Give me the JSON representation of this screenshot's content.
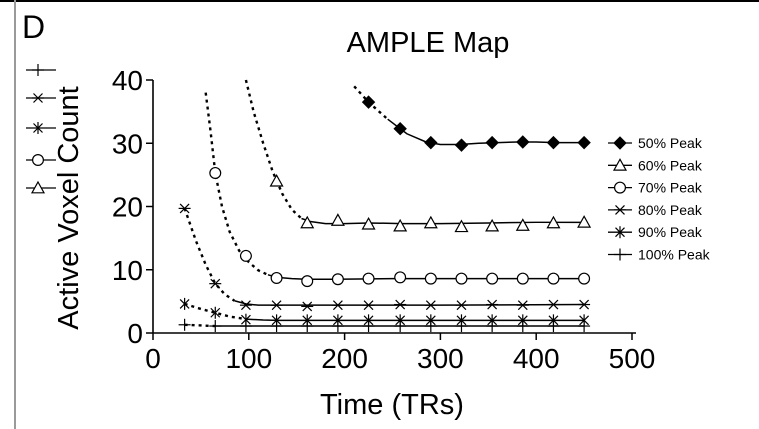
{
  "panel_letter": "D",
  "chart_data": {
    "type": "line",
    "title": "AMPLE Map",
    "xlabel": "Time (TRs)",
    "ylabel": "Active Voxel Count",
    "xlim": [
      0,
      500
    ],
    "ylim": [
      0,
      40
    ],
    "x_ticks": [
      "0",
      "100",
      "200",
      "300",
      "400",
      "500"
    ],
    "y_ticks": [
      "0",
      "10",
      "20",
      "30",
      "40"
    ],
    "legend_position": "right",
    "series": [
      {
        "name": "50% Peak",
        "marker": "diamond-filled",
        "x": [
          225,
          258,
          290,
          322,
          354,
          386,
          418,
          450
        ],
        "y": [
          36.5,
          32.3,
          30.1,
          29.7,
          30.1,
          30.2,
          30.1,
          30.1
        ],
        "fit_x": [
          210,
          225,
          245,
          265,
          285,
          300,
          320,
          340,
          360,
          380,
          400,
          420,
          450
        ],
        "fit_y": [
          39,
          36.5,
          33.8,
          31.5,
          30.2,
          29.8,
          29.8,
          30.0,
          30.1,
          30.2,
          30.2,
          30.1,
          30.1
        ],
        "dashed_until": 245
      },
      {
        "name": "60% Peak",
        "marker": "triangle-open",
        "x": [
          129,
          161,
          193,
          225,
          258,
          290,
          322,
          354,
          386,
          418,
          450
        ],
        "y": [
          24,
          17.4,
          17.8,
          17.2,
          16.9,
          17.4,
          16.8,
          16.9,
          17.0,
          17.4,
          17.5
        ],
        "fit_x": [
          97,
          105,
          115,
          125,
          135,
          145,
          155,
          165,
          180,
          200,
          225,
          260,
          300,
          350,
          400,
          450
        ],
        "fit_y": [
          40,
          35,
          30,
          25.5,
          22,
          19.5,
          18.1,
          17.6,
          17.3,
          17.3,
          17.4,
          17.3,
          17.3,
          17.4,
          17.5,
          17.5
        ],
        "dashed_until": 160
      },
      {
        "name": "70% Peak",
        "marker": "circle-open",
        "x": [
          65,
          97,
          129,
          161,
          193,
          225,
          258,
          290,
          322,
          354,
          386,
          418,
          450
        ],
        "y": [
          25.3,
          12.2,
          8.7,
          8.2,
          8.5,
          8.6,
          8.8,
          8.6,
          8.6,
          8.6,
          8.6,
          8.6,
          8.6
        ],
        "fit_x": [
          55,
          60,
          65,
          72,
          80,
          90,
          100,
          110,
          120,
          130,
          145,
          160,
          190,
          250,
          350,
          450
        ],
        "fit_y": [
          38,
          32,
          25.3,
          20,
          16,
          13,
          11.2,
          9.9,
          9.2,
          8.8,
          8.6,
          8.5,
          8.5,
          8.6,
          8.6,
          8.6
        ],
        "dashed_until": 125
      },
      {
        "name": "80% Peak",
        "marker": "asterisk",
        "x": [
          33,
          65,
          97,
          129,
          161,
          193,
          225,
          258,
          290,
          322,
          354,
          386,
          418,
          450
        ],
        "y": [
          19.7,
          7.8,
          4.4,
          4.4,
          4.2,
          4.4,
          4.4,
          4.5,
          4.4,
          4.4,
          4.5,
          4.4,
          4.5,
          4.5
        ],
        "fit_x": [
          33,
          45,
          55,
          65,
          75,
          85,
          97,
          110,
          130,
          160,
          200,
          300,
          450
        ],
        "fit_y": [
          19.7,
          14.5,
          10.8,
          7.8,
          6.1,
          5.1,
          4.6,
          4.4,
          4.4,
          4.4,
          4.4,
          4.4,
          4.5
        ],
        "dashed_until": 90
      },
      {
        "name": "90% Peak",
        "marker": "star",
        "x": [
          33,
          65,
          97,
          129,
          161,
          193,
          225,
          258,
          290,
          322,
          354,
          386,
          418,
          450
        ],
        "y": [
          4.6,
          3.2,
          2.1,
          2.0,
          2.0,
          2.0,
          2.0,
          2.0,
          2.0,
          2.0,
          2.0,
          2.0,
          2.0,
          2.0
        ],
        "fit_x": [
          33,
          50,
          65,
          80,
          97,
          115,
          130,
          160,
          250,
          450
        ],
        "fit_y": [
          4.6,
          3.8,
          3.2,
          2.6,
          2.2,
          2.05,
          2.0,
          2.0,
          2.0,
          2.0
        ],
        "dashed_until": 97
      },
      {
        "name": "100% Peak",
        "marker": "plus",
        "x": [
          33,
          65,
          97,
          129,
          161,
          193,
          225,
          258,
          290,
          322,
          354,
          386,
          418,
          450
        ],
        "y": [
          1.3,
          1.1,
          1.1,
          1.1,
          1.1,
          1.1,
          1.1,
          1.1,
          1.1,
          1.1,
          1.1,
          1.1,
          1.1,
          1.1
        ],
        "fit_x": [
          33,
          65,
          97,
          450
        ],
        "fit_y": [
          1.3,
          1.1,
          1.1,
          1.1
        ],
        "dashed_until": 65
      }
    ]
  },
  "left_marker_column": [
    "plus",
    "asterisk",
    "star",
    "circle-open",
    "triangle-open"
  ]
}
